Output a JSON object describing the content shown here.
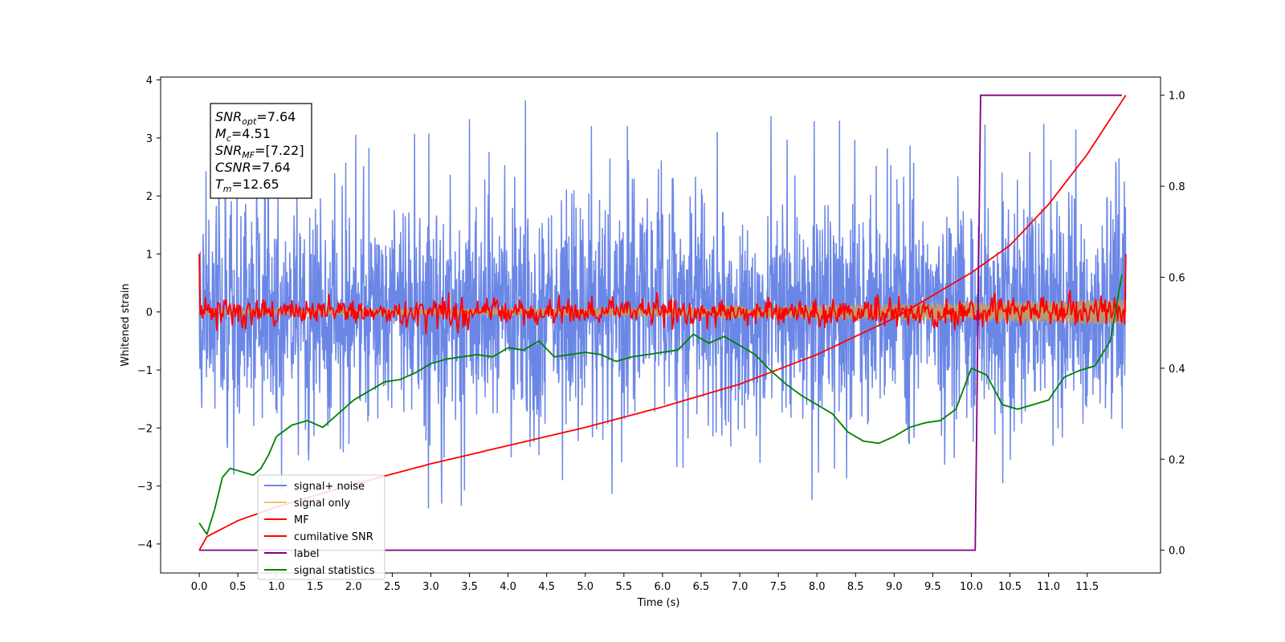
{
  "chart_data": {
    "type": "line",
    "xlabel": "Time (s)",
    "ylabel_left": "Whitened strain",
    "ylabel_right": "",
    "xlim": [
      -0.5,
      12.45
    ],
    "ylim_left": [
      -4.5,
      4.05
    ],
    "ylim_right": [
      -0.05,
      1.04
    ],
    "x_ticks": [
      "0.0",
      "0.5",
      "1.0",
      "1.5",
      "2.0",
      "2.5",
      "3.0",
      "3.5",
      "4.0",
      "4.5",
      "5.0",
      "5.5",
      "6.0",
      "6.5",
      "7.0",
      "7.5",
      "8.0",
      "8.5",
      "9.0",
      "9.5",
      "10.0",
      "10.5",
      "11.0",
      "11.5"
    ],
    "y_ticks_left": [
      "4",
      "3",
      "2",
      "1",
      "0",
      "−1",
      "−2",
      "−3",
      "−4"
    ],
    "y_ticks_right": [
      "1.0",
      "0.8",
      "0.6",
      "0.4",
      "0.2",
      "0.0"
    ],
    "grid": false,
    "legend_position": "lower-left",
    "annotation": [
      {
        "base": "SNR",
        "sub": "opt",
        "rest": "=7.64"
      },
      {
        "base": "M",
        "sub": "c",
        "rest": "=4.51"
      },
      {
        "base": "SNR",
        "sub": "MF",
        "rest": "=[7.22]"
      },
      {
        "base": "CSNR",
        "sub": "",
        "rest": "=7.64"
      },
      {
        "base": "T",
        "sub": "m",
        "rest": "=12.65"
      }
    ],
    "series": [
      {
        "name": "signal+ noise",
        "axis": "left",
        "color": "#6b87e6",
        "note_range": "noise band roughly [-2.2, 2.2] with spikes to 3.7",
        "x_range": [
          0.0,
          12.0
        ],
        "typical_amplitude": 1.1,
        "max_peak": 3.67,
        "min_peak": -3.38
      },
      {
        "name": "signal only",
        "axis": "left",
        "color": "#f6c36e",
        "x_range": [
          0.0,
          12.0
        ],
        "envelope_start": 0.04,
        "envelope_end": 0.22
      },
      {
        "name": "MF",
        "axis": "left",
        "color": "#ff0000",
        "x_range": [
          0.0,
          12.0
        ],
        "start_value": 1.0,
        "end_value": 1.0,
        "typical_amplitude": 0.12
      },
      {
        "name": "cumilative SNR",
        "axis": "right",
        "color": "#ff0000",
        "x": [
          0.0,
          0.1,
          0.5,
          1.0,
          1.5,
          2.0,
          3.0,
          4.0,
          5.0,
          6.0,
          7.0,
          8.0,
          9.0,
          10.0,
          10.5,
          11.0,
          11.5,
          12.0
        ],
        "values": [
          0.0,
          0.03,
          0.065,
          0.095,
          0.12,
          0.145,
          0.19,
          0.23,
          0.27,
          0.315,
          0.365,
          0.43,
          0.51,
          0.61,
          0.67,
          0.76,
          0.87,
          1.0
        ]
      },
      {
        "name": "label",
        "axis": "right",
        "color": "#800080",
        "x": [
          0.0,
          10.05,
          10.12,
          11.95
        ],
        "values": [
          0.0,
          0.0,
          1.0,
          1.0
        ]
      },
      {
        "name": "signal statistics",
        "axis": "right",
        "color": "#008000",
        "x": [
          0.0,
          0.1,
          0.2,
          0.3,
          0.4,
          0.5,
          0.6,
          0.7,
          0.8,
          0.9,
          1.0,
          1.2,
          1.4,
          1.6,
          1.8,
          2.0,
          2.2,
          2.4,
          2.6,
          2.8,
          3.0,
          3.2,
          3.4,
          3.6,
          3.8,
          4.0,
          4.2,
          4.4,
          4.6,
          4.8,
          5.0,
          5.2,
          5.4,
          5.6,
          5.8,
          6.0,
          6.2,
          6.4,
          6.6,
          6.8,
          7.0,
          7.2,
          7.4,
          7.6,
          7.8,
          8.0,
          8.2,
          8.4,
          8.6,
          8.8,
          9.0,
          9.2,
          9.4,
          9.6,
          9.8,
          10.0,
          10.2,
          10.4,
          10.6,
          10.8,
          11.0,
          11.2,
          11.4,
          11.6,
          11.8,
          11.95
        ],
        "values": [
          0.06,
          0.035,
          0.09,
          0.16,
          0.18,
          0.175,
          0.17,
          0.165,
          0.18,
          0.21,
          0.25,
          0.275,
          0.285,
          0.27,
          0.3,
          0.33,
          0.35,
          0.37,
          0.375,
          0.39,
          0.41,
          0.42,
          0.425,
          0.43,
          0.425,
          0.445,
          0.44,
          0.46,
          0.425,
          0.43,
          0.435,
          0.43,
          0.415,
          0.425,
          0.43,
          0.435,
          0.44,
          0.475,
          0.455,
          0.47,
          0.45,
          0.43,
          0.395,
          0.365,
          0.34,
          0.32,
          0.3,
          0.26,
          0.24,
          0.235,
          0.25,
          0.27,
          0.28,
          0.285,
          0.31,
          0.4,
          0.385,
          0.32,
          0.31,
          0.32,
          0.33,
          0.38,
          0.395,
          0.405,
          0.46,
          0.605
        ]
      }
    ]
  }
}
